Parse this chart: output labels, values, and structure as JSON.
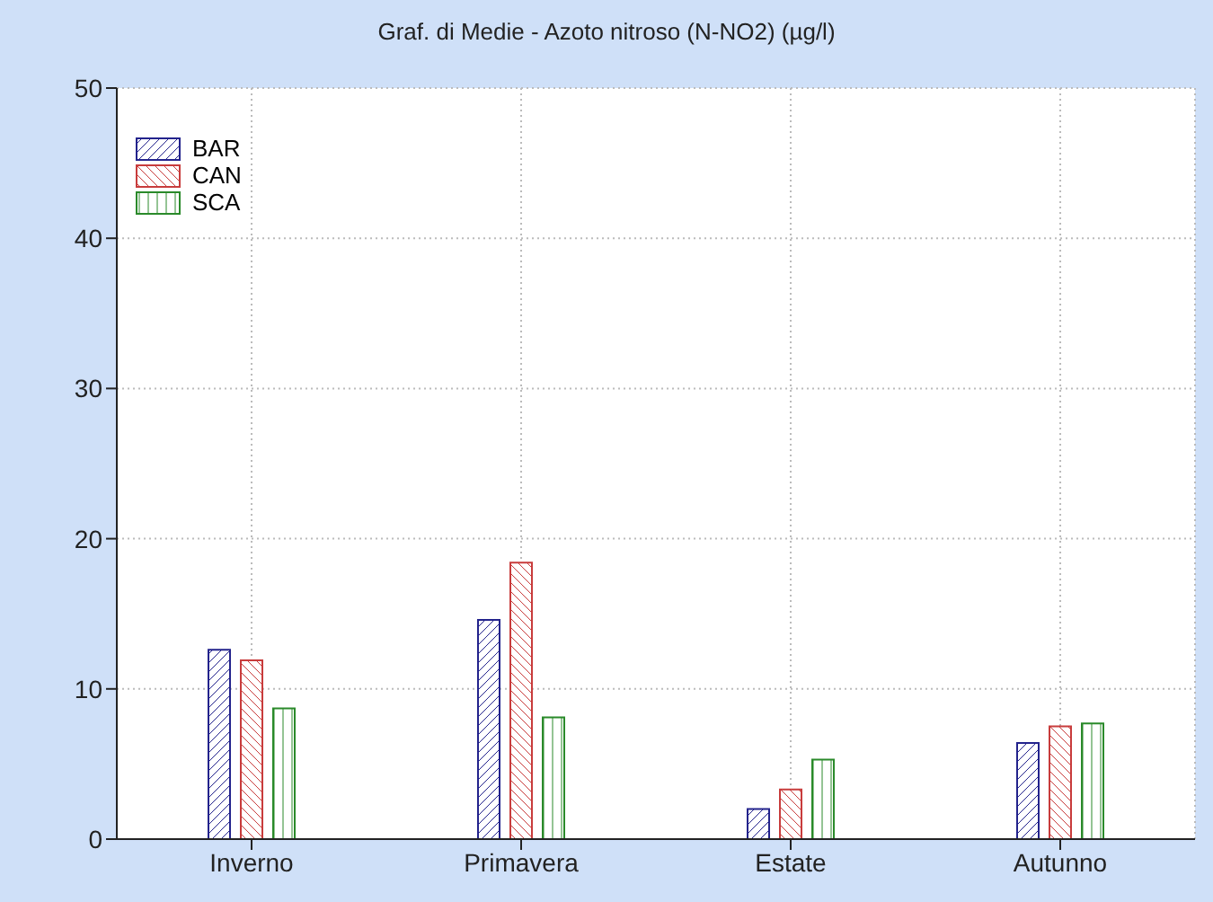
{
  "chart_data": {
    "type": "bar",
    "title": "Graf. di Medie - Azoto nitroso (N-NO2) (µg/l)",
    "categories": [
      "Inverno",
      "Primavera",
      "Estate",
      "Autunno"
    ],
    "series": [
      {
        "name": "BAR",
        "color": "#23238c",
        "values": [
          12.6,
          14.6,
          2.0,
          6.4
        ]
      },
      {
        "name": "CAN",
        "color": "#c83c3c",
        "values": [
          11.9,
          18.4,
          3.3,
          7.5
        ]
      },
      {
        "name": "SCA",
        "color": "#2a8a2a",
        "values": [
          8.7,
          8.1,
          5.3,
          7.7
        ]
      }
    ],
    "ylim": [
      0,
      50
    ],
    "yticks": [
      0,
      10,
      20,
      30,
      40,
      50
    ],
    "grid": true,
    "legend": "top left"
  }
}
